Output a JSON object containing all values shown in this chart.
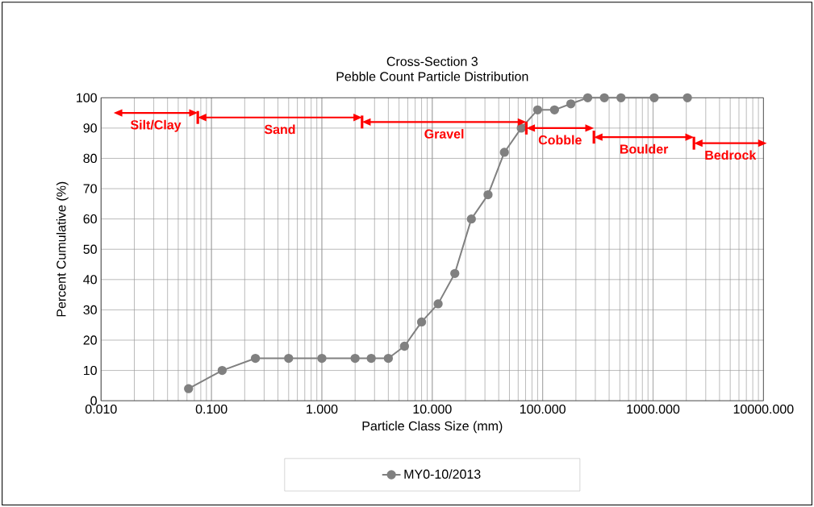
{
  "chart_data": {
    "type": "line",
    "title": "Cross-Section 3",
    "subtitle": "Pebble Count Particle Distribution",
    "xlabel": "Particle Class Size (mm)",
    "ylabel": "Percent Cumulative (%)",
    "x": [
      0.062,
      0.125,
      0.25,
      0.5,
      1,
      2,
      2.8,
      4,
      5.6,
      8,
      11.3,
      16,
      22.6,
      32,
      45,
      64,
      90,
      128,
      180,
      256,
      362,
      512,
      1024,
      2048
    ],
    "series": [
      {
        "name": "MY0-10/2013",
        "color": "#808080",
        "values": [
          4,
          10,
          14,
          14,
          14,
          14,
          14,
          14,
          18,
          26,
          32,
          42,
          60,
          68,
          82,
          90,
          96,
          96,
          98,
          100,
          100,
          100,
          100,
          100
        ]
      }
    ],
    "annotations": [
      "Silt/Clay",
      "Sand",
      "Gravel",
      "Cobble",
      "Boulder",
      "Bedrock"
    ],
    "xlim": [
      0.01,
      10000
    ],
    "xticks": [
      {
        "value": 0.01,
        "label": "0.010"
      },
      {
        "value": 0.1,
        "label": "0.100"
      },
      {
        "value": 1,
        "label": "1.000"
      },
      {
        "value": 10,
        "label": "10.000"
      },
      {
        "value": 100,
        "label": "100.000"
      },
      {
        "value": 1000,
        "label": "1000.000"
      },
      {
        "value": 10000,
        "label": "10000.000"
      }
    ],
    "ylim": [
      0,
      100
    ],
    "yticks": [
      0,
      10,
      20,
      30,
      40,
      50,
      60,
      70,
      80,
      90,
      100
    ],
    "log": "x",
    "grid": true,
    "legend": "bottom",
    "marker": "circle",
    "line_style": "solid"
  }
}
